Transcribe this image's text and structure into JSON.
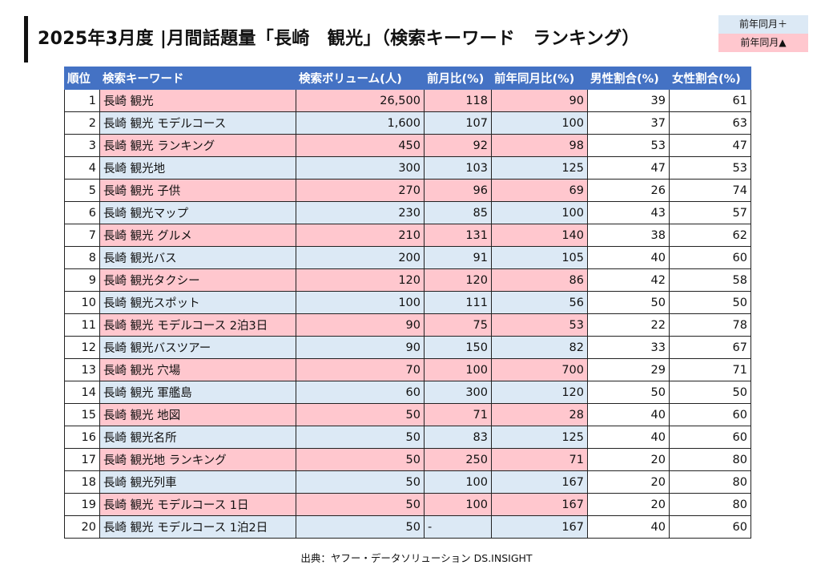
{
  "title": "2025年3月度 |月間話題量「長崎　観光」（検索キーワード　ランキング）",
  "legend": {
    "up": "前年同月＋",
    "down": "前年同月▲"
  },
  "colors": {
    "header": "#4472c4",
    "pink": "#ffc7ce",
    "blue": "#dce9f5"
  },
  "table": {
    "headers": [
      "順位",
      "検索キーワード",
      "検索ボリューム(人)",
      "前月比(%)",
      "前年同月比(%)",
      "男性割合(%)",
      "女性割合(%)"
    ],
    "rows": [
      [
        "1",
        "長崎 観光",
        "26,500",
        "118",
        "90",
        "39",
        "61"
      ],
      [
        "2",
        "長崎 観光 モデルコース",
        "1,600",
        "107",
        "100",
        "37",
        "63"
      ],
      [
        "3",
        "長崎 観光 ランキング",
        "450",
        "92",
        "98",
        "53",
        "47"
      ],
      [
        "4",
        "長崎 観光地",
        "300",
        "103",
        "125",
        "47",
        "53"
      ],
      [
        "5",
        "長崎 観光 子供",
        "270",
        "96",
        "69",
        "26",
        "74"
      ],
      [
        "6",
        "長崎 観光マップ",
        "230",
        "85",
        "100",
        "43",
        "57"
      ],
      [
        "7",
        "長崎 観光 グルメ",
        "210",
        "131",
        "140",
        "38",
        "62"
      ],
      [
        "8",
        "長崎 観光バス",
        "200",
        "91",
        "105",
        "40",
        "60"
      ],
      [
        "9",
        "長崎 観光タクシー",
        "120",
        "120",
        "86",
        "42",
        "58"
      ],
      [
        "10",
        "長崎 観光スポット",
        "100",
        "111",
        "56",
        "50",
        "50"
      ],
      [
        "11",
        "長崎 観光 モデルコース 2泊3日",
        "90",
        "75",
        "53",
        "22",
        "78"
      ],
      [
        "12",
        "長崎 観光バスツアー",
        "90",
        "150",
        "82",
        "33",
        "67"
      ],
      [
        "13",
        "長崎 観光 穴場",
        "70",
        "100",
        "700",
        "29",
        "71"
      ],
      [
        "14",
        "長崎 観光 軍艦島",
        "60",
        "300",
        "120",
        "50",
        "50"
      ],
      [
        "15",
        "長崎 観光 地図",
        "50",
        "71",
        "28",
        "40",
        "60"
      ],
      [
        "16",
        "長崎 観光名所",
        "50",
        "83",
        "125",
        "40",
        "60"
      ],
      [
        "17",
        "長崎 観光地 ランキング",
        "50",
        "250",
        "71",
        "20",
        "80"
      ],
      [
        "18",
        "長崎 観光列車",
        "50",
        "100",
        "167",
        "20",
        "80"
      ],
      [
        "19",
        "長崎 観光 モデルコース 1日",
        "50",
        "100",
        "167",
        "20",
        "80"
      ],
      [
        "20",
        "長崎 観光 モデルコース 1泊2日",
        "50",
        "-",
        "167",
        "40",
        "60"
      ]
    ]
  },
  "source": "出典：ヤフー・データソリューション DS.INSIGHT"
}
